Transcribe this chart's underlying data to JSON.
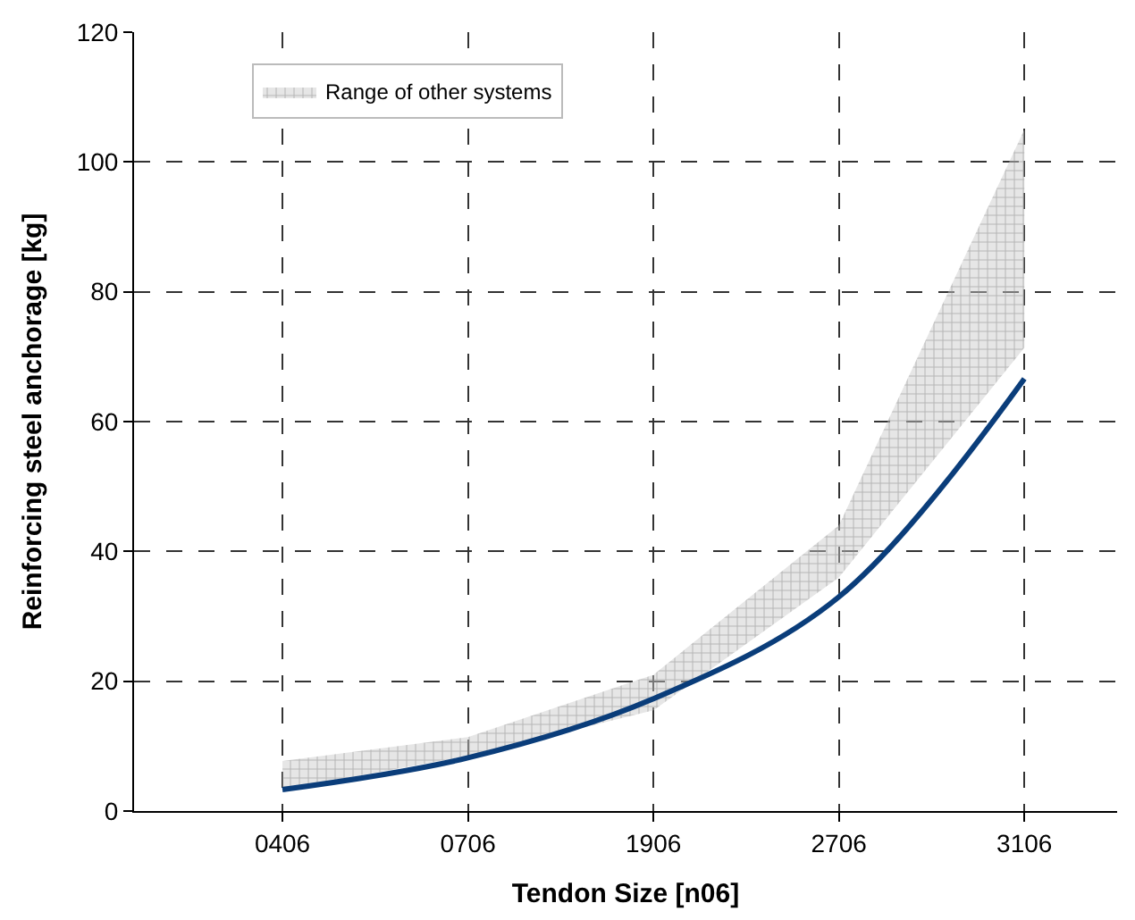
{
  "chart_data": {
    "type": "line",
    "xlabel": "Tendon Size [n06]",
    "ylabel": "Reinforcing steel anchorage [kg]",
    "categories": [
      "0406",
      "0706",
      "1906",
      "2706",
      "3106"
    ],
    "ylim": [
      0,
      120
    ],
    "yticks": [
      0,
      20,
      40,
      60,
      80,
      100,
      120
    ],
    "series": [
      {
        "color": "#0a3d7a",
        "values": [
          3.3,
          8.2,
          17.3,
          33,
          66.6
        ]
      },
      {
        "type": "area",
        "name": "Range of other systems",
        "color": "#888888",
        "values": [
          null,
          null,
          null,
          null,
          null
        ],
        "lower": [
          3.3,
          8.5,
          15.5,
          36,
          71.4
        ],
        "upper": [
          7.7,
          11.4,
          21,
          44,
          105
        ]
      }
    ],
    "grid": true,
    "legend": "top left"
  }
}
